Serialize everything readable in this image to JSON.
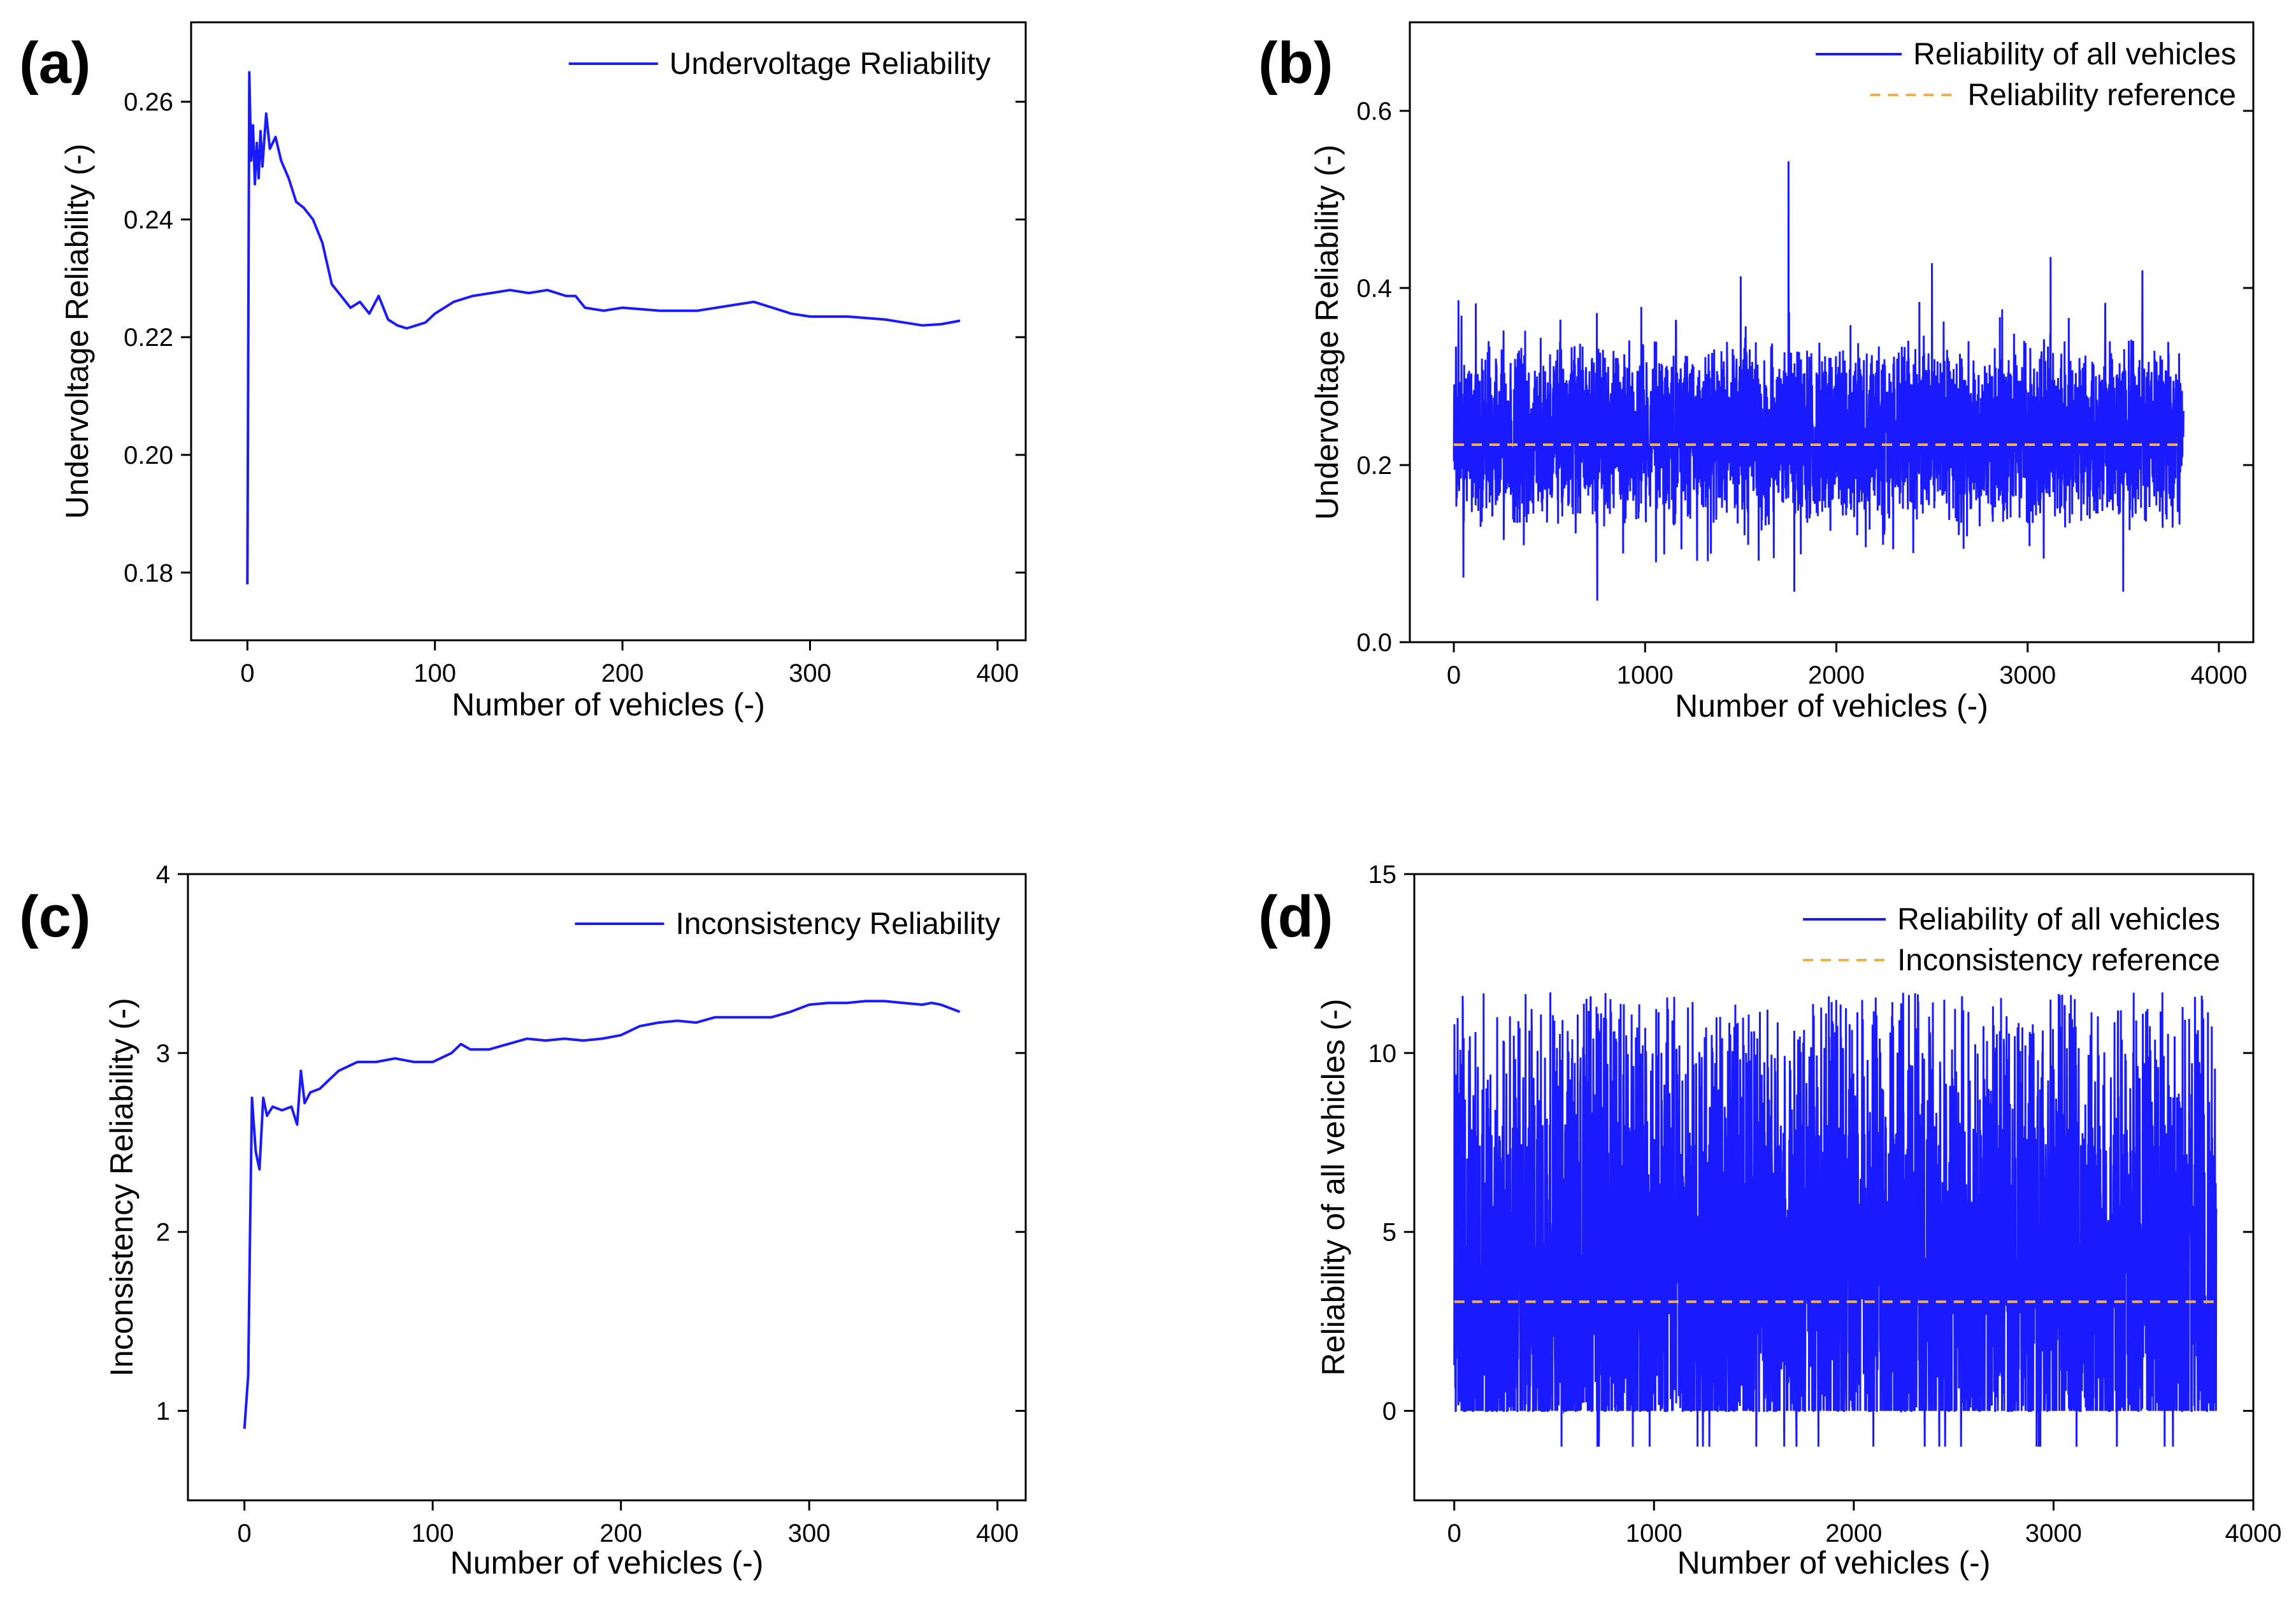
{
  "chart_data": [
    {
      "panel": "(a)",
      "type": "line",
      "xlabel": "Number of vehicles (-)",
      "ylabel": "Undervoltage Reliability (-)",
      "xlim": [
        -30,
        415
      ],
      "ylim": [
        0.1685,
        0.2735
      ],
      "xticks": [
        0,
        100,
        200,
        300,
        400
      ],
      "yticks": [
        0.18,
        0.2,
        0.22,
        0.24,
        0.26
      ],
      "ytick_labels": [
        "0.18",
        "0.20",
        "0.22",
        "0.24",
        "0.26"
      ],
      "legend": [
        "Undervoltage Reliability"
      ],
      "legend_position": "top-right",
      "colors": {
        "series": "#1a1aff"
      },
      "series": [
        {
          "name": "Undervoltage Reliability",
          "x": [
            0,
            1,
            2,
            3,
            4,
            5,
            6,
            7,
            8,
            10,
            12,
            15,
            18,
            22,
            26,
            30,
            35,
            40,
            45,
            50,
            55,
            60,
            65,
            70,
            75,
            80,
            85,
            90,
            95,
            100,
            110,
            120,
            130,
            140,
            150,
            160,
            170,
            175,
            180,
            190,
            200,
            220,
            240,
            260,
            270,
            280,
            290,
            300,
            320,
            340,
            360,
            370,
            380
          ],
          "y": [
            0.178,
            0.265,
            0.25,
            0.256,
            0.246,
            0.253,
            0.247,
            0.255,
            0.249,
            0.258,
            0.252,
            0.254,
            0.25,
            0.247,
            0.243,
            0.242,
            0.24,
            0.236,
            0.229,
            0.227,
            0.225,
            0.226,
            0.224,
            0.227,
            0.223,
            0.222,
            0.2215,
            0.222,
            0.2225,
            0.224,
            0.226,
            0.227,
            0.2275,
            0.228,
            0.2275,
            0.228,
            0.227,
            0.227,
            0.225,
            0.2245,
            0.225,
            0.2245,
            0.2245,
            0.2255,
            0.226,
            0.225,
            0.224,
            0.2235,
            0.2235,
            0.223,
            0.222,
            0.2222,
            0.2228
          ]
        }
      ]
    },
    {
      "panel": "(b)",
      "type": "line",
      "xlabel": "Number of vehicles (-)",
      "ylabel": "Undervoltage Reliability (-)",
      "xlim": [
        -230,
        4180
      ],
      "ylim": [
        0.0,
        0.7
      ],
      "xticks": [
        0,
        1000,
        2000,
        3000,
        4000
      ],
      "yticks": [
        0.0,
        0.2,
        0.4,
        0.6
      ],
      "ytick_labels": [
        "0.0",
        "0.2",
        "0.4",
        "0.6"
      ],
      "legend": [
        "Reliability of all vehicles",
        "Reliability reference"
      ],
      "legend_position": "top-right",
      "colors": {
        "series": "#1a1aff",
        "reference": "#f0b050"
      },
      "n_points": 3816,
      "band_approx": [
        0.15,
        0.32
      ],
      "reference": 0.223,
      "spikes": [
        {
          "x": 1750,
          "y": 0.543
        },
        {
          "x": 3120,
          "y": 0.435
        },
        {
          "x": 2500,
          "y": 0.428
        },
        {
          "x": 1500,
          "y": 0.413
        },
        {
          "x": 3600,
          "y": 0.42
        },
        {
          "x": 750,
          "y": 0.047
        },
        {
          "x": 1780,
          "y": 0.057
        },
        {
          "x": 3500,
          "y": 0.057
        },
        {
          "x": 50,
          "y": 0.073
        }
      ]
    },
    {
      "panel": "(c)",
      "type": "line",
      "xlabel": "Number of vehicles (-)",
      "ylabel": "Inconsistency Reliability (-)",
      "xlim": [
        -30,
        415
      ],
      "ylim": [
        0.5,
        4.0
      ],
      "xticks": [
        0,
        100,
        200,
        300,
        400
      ],
      "yticks": [
        1,
        2,
        3,
        4
      ],
      "ytick_labels": [
        "1",
        "2",
        "3",
        "4"
      ],
      "legend": [
        "Inconsistency Reliability"
      ],
      "legend_position": "top-right",
      "colors": {
        "series": "#1a1aff"
      },
      "series": [
        {
          "name": "Inconsistency Reliability",
          "x": [
            0,
            2,
            3,
            4,
            5,
            6,
            7,
            8,
            10,
            12,
            15,
            20,
            25,
            28,
            30,
            32,
            35,
            40,
            45,
            50,
            60,
            70,
            80,
            90,
            100,
            110,
            115,
            120,
            130,
            140,
            150,
            160,
            170,
            180,
            190,
            200,
            210,
            220,
            230,
            240,
            250,
            260,
            270,
            280,
            290,
            300,
            310,
            320,
            330,
            340,
            350,
            360,
            365,
            370,
            375,
            380
          ],
          "y": [
            0.9,
            1.2,
            2.0,
            2.75,
            2.6,
            2.45,
            2.4,
            2.35,
            2.75,
            2.65,
            2.7,
            2.68,
            2.7,
            2.6,
            2.9,
            2.72,
            2.78,
            2.8,
            2.85,
            2.9,
            2.95,
            2.95,
            2.97,
            2.95,
            2.95,
            3.0,
            3.05,
            3.02,
            3.02,
            3.05,
            3.08,
            3.07,
            3.08,
            3.07,
            3.08,
            3.1,
            3.15,
            3.17,
            3.18,
            3.17,
            3.2,
            3.2,
            3.2,
            3.2,
            3.23,
            3.27,
            3.28,
            3.28,
            3.29,
            3.29,
            3.28,
            3.27,
            3.28,
            3.27,
            3.25,
            3.23
          ]
        }
      ]
    },
    {
      "panel": "(d)",
      "type": "line",
      "xlabel": "Number of vehicles (-)",
      "ylabel": "Reliability of all vehicles (-)",
      "xlim": [
        -200,
        4000
      ],
      "ylim": [
        -2.5,
        15.0
      ],
      "xticks": [
        0,
        1000,
        2000,
        3000,
        4000
      ],
      "yticks": [
        0,
        5,
        10,
        15
      ],
      "ytick_labels": [
        "0",
        "5",
        "10",
        "15"
      ],
      "legend": [
        "Reliability of all vehicles",
        "Inconsistency reference"
      ],
      "legend_position": "top-right",
      "colors": {
        "series": "#1a1aff",
        "reference": "#f0b050"
      },
      "n_points": 3816,
      "band_approx": [
        0.0,
        8.0
      ],
      "reference": 3.05,
      "max": 11.7,
      "min": -1.0
    }
  ]
}
